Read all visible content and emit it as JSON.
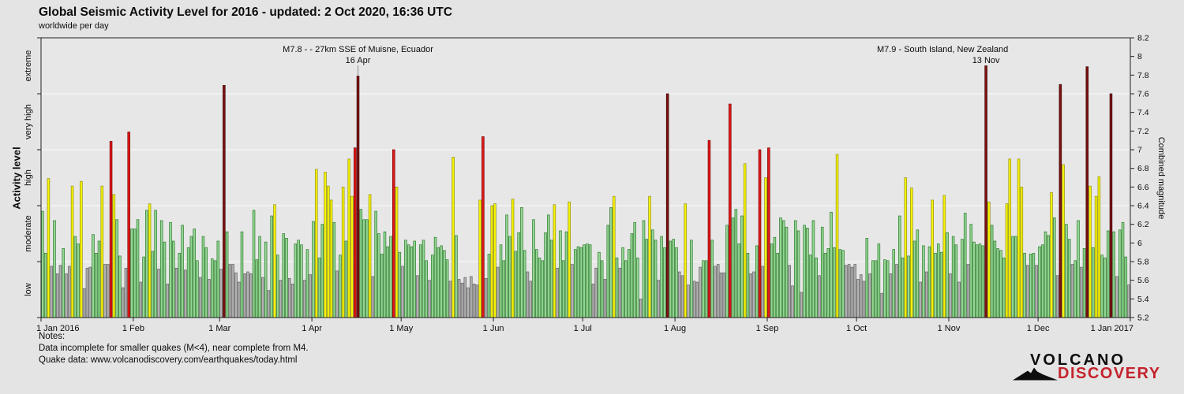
{
  "header": {
    "title": "Global Seismic Activity Level for 2016 - updated:  2 Oct 2020, 16:36 UTC",
    "subtitle": "worldwide per day"
  },
  "left_axis": {
    "title": "Activity level",
    "band_labels": [
      "low",
      "moderate",
      "high",
      "very high",
      "extreme"
    ]
  },
  "right_axis": {
    "title": "Combined magnitude",
    "min": 5.2,
    "max": 8.2,
    "step": 0.2
  },
  "levels": [
    {
      "name": "low",
      "max": 5.8,
      "fill": "#b2b2b2",
      "stroke": "#636363"
    },
    {
      "name": "moderate",
      "max": 6.4,
      "fill": "#93d693",
      "stroke": "#2c7a2c"
    },
    {
      "name": "high",
      "max": 7.0,
      "fill": "#f8f304",
      "stroke": "#91910a"
    },
    {
      "name": "very high",
      "max": 7.6,
      "fill": "#e21717",
      "stroke": "#7c0404"
    },
    {
      "name": "extreme",
      "max": 99,
      "fill": "#7d1212",
      "stroke": "#400606"
    }
  ],
  "annotations": [
    {
      "line1": "M7.8 - - 27km SSE of Muisne, Ecuador",
      "line2": "16 Apr",
      "day_index": 106,
      "line1_dx": 0,
      "leader": true
    },
    {
      "line1": "M7.9 - South Island, New Zealand",
      "line2": "13 Nov",
      "day_index": 317,
      "line1_dx": -55,
      "leader": false
    }
  ],
  "notes": {
    "heading": "Notes:",
    "line1": "Data incomplete for smaller quakes (M<4), near complete from M4.",
    "line2": "Quake data: www.volcanodiscovery.com/earthquakes/today.html"
  },
  "logo": {
    "word1": "VOLCANO",
    "word2": "DISCOVERY"
  },
  "chart_data": {
    "type": "bar",
    "title": "Global Seismic Activity Level for 2016",
    "xlabel": "",
    "ylabel_left": "Activity level",
    "ylabel_right": "Combined magnitude",
    "ylim": [
      5.2,
      8.2
    ],
    "gridlines": [
      5.8,
      6.4,
      7.0,
      7.6
    ],
    "plot_bg": "#e7e7e7",
    "grid_color": "#f7f7f7",
    "axis_color": "#222222",
    "x_ticks": [
      {
        "label": "1 Jan 2016",
        "day": 0
      },
      {
        "label": "1 Feb",
        "day": 31
      },
      {
        "label": "1 Mar",
        "day": 60
      },
      {
        "label": "1 Apr",
        "day": 91
      },
      {
        "label": "1 May",
        "day": 121
      },
      {
        "label": "1 Jun",
        "day": 152
      },
      {
        "label": "1 Jul",
        "day": 182
      },
      {
        "label": "1 Aug",
        "day": 213
      },
      {
        "label": "1 Sep",
        "day": 244
      },
      {
        "label": "1 Oct",
        "day": 274
      },
      {
        "label": "1 Nov",
        "day": 305
      },
      {
        "label": "1 Dec",
        "day": 335
      },
      {
        "label": "1 Jan 2017",
        "day": 366
      }
    ],
    "values": [
      6.34,
      5.89,
      6.69,
      5.75,
      6.24,
      5.67,
      5.76,
      5.94,
      5.67,
      5.75,
      6.61,
      6.07,
      5.99,
      6.66,
      5.51,
      5.73,
      5.74,
      6.09,
      5.89,
      6.02,
      6.61,
      5.77,
      5.77,
      7.09,
      6.52,
      6.25,
      5.86,
      5.52,
      5.73,
      7.19,
      6.15,
      6.15,
      6.25,
      5.58,
      5.85,
      6.35,
      6.42,
      5.91,
      6.35,
      5.72,
      6.24,
      6.01,
      5.56,
      6.22,
      6.02,
      5.73,
      5.89,
      6.19,
      5.71,
      5.95,
      6.07,
      6.15,
      5.81,
      5.63,
      6.07,
      5.95,
      5.61,
      5.83,
      5.81,
      6.02,
      5.72,
      7.69,
      6.12,
      5.77,
      5.77,
      5.68,
      5.58,
      6.12,
      5.67,
      5.69,
      5.67,
      6.35,
      5.82,
      6.07,
      5.63,
      6.01,
      5.49,
      6.29,
      6.41,
      5.87,
      5.6,
      6.1,
      6.05,
      5.62,
      5.56,
      5.99,
      6.03,
      5.98,
      5.6,
      5.93,
      5.66,
      6.23,
      6.79,
      5.84,
      6.2,
      6.76,
      6.61,
      6.46,
      6.22,
      5.7,
      5.87,
      6.6,
      6.02,
      6.9,
      6.5,
      7.02,
      7.79,
      6.36,
      6.25,
      6.25,
      6.52,
      5.64,
      6.34,
      6.1,
      5.88,
      6.12,
      5.96,
      6.07,
      7.0,
      6.6,
      5.9,
      5.75,
      6.03,
      5.98,
      5.96,
      6.02,
      5.65,
      5.98,
      6.03,
      5.81,
      5.6,
      5.87,
      6.06,
      5.95,
      5.97,
      5.92,
      5.82,
      5.59,
      6.92,
      6.08,
      5.61,
      5.57,
      5.63,
      5.52,
      5.64,
      5.56,
      5.55,
      6.46,
      7.14,
      5.62,
      5.88,
      6.4,
      6.42,
      5.74,
      5.98,
      5.81,
      6.3,
      6.07,
      6.47,
      5.91,
      6.11,
      6.38,
      5.92,
      5.69,
      5.59,
      6.25,
      5.93,
      5.84,
      5.81,
      6.11,
      6.3,
      6.03,
      6.41,
      5.73,
      6.13,
      5.81,
      6.12,
      6.44,
      5.77,
      5.93,
      5.96,
      5.95,
      5.98,
      5.99,
      5.98,
      5.56,
      5.73,
      5.9,
      5.81,
      5.61,
      6.19,
      6.38,
      6.5,
      5.84,
      5.73,
      5.95,
      5.81,
      5.93,
      6.1,
      6.22,
      5.84,
      5.4,
      6.24,
      6.04,
      6.5,
      6.14,
      6.03,
      5.6,
      6.07,
      5.95,
      7.6,
      6.02,
      6.04,
      5.95,
      5.69,
      5.65,
      6.42,
      5.55,
      6.03,
      5.59,
      5.58,
      5.74,
      5.81,
      5.81,
      7.1,
      6.03,
      5.75,
      5.77,
      5.68,
      5.68,
      6.19,
      7.49,
      6.27,
      6.36,
      5.99,
      6.29,
      6.85,
      5.89,
      5.67,
      5.69,
      5.97,
      7.0,
      5.75,
      6.7,
      7.02,
      5.99,
      6.06,
      5.89,
      6.27,
      6.24,
      6.17,
      5.76,
      5.54,
      6.24,
      6.13,
      5.47,
      6.19,
      6.16,
      5.87,
      6.24,
      5.84,
      5.65,
      6.17,
      5.89,
      5.94,
      6.33,
      5.95,
      6.95,
      5.93,
      5.92,
      5.76,
      5.77,
      5.74,
      5.77,
      5.61,
      5.66,
      5.59,
      6.05,
      5.67,
      5.81,
      5.81,
      5.99,
      5.46,
      5.82,
      5.81,
      5.67,
      5.93,
      5.77,
      6.29,
      5.84,
      6.7,
      5.86,
      6.59,
      6.02,
      6.14,
      5.58,
      5.97,
      5.69,
      5.96,
      6.46,
      5.89,
      5.99,
      5.9,
      6.51,
      6.11,
      5.67,
      6.07,
      5.98,
      5.58,
      6.04,
      6.32,
      5.77,
      6.2,
      6.01,
      5.98,
      5.99,
      5.97,
      7.9,
      6.44,
      6.19,
      6.02,
      5.94,
      5.92,
      5.84,
      6.42,
      6.9,
      6.07,
      6.07,
      6.9,
      6.6,
      5.89,
      5.76,
      5.88,
      5.89,
      5.76,
      5.96,
      5.98,
      6.12,
      6.08,
      6.54,
      6.27,
      5.65,
      7.7,
      6.84,
      6.2,
      6.04,
      5.77,
      5.81,
      6.24,
      5.74,
      5.94,
      7.89,
      6.61,
      5.95,
      6.5,
      6.71,
      5.87,
      5.84,
      6.13,
      7.6,
      6.12,
      5.64,
      6.14,
      6.22,
      5.85,
      5.55
    ]
  }
}
